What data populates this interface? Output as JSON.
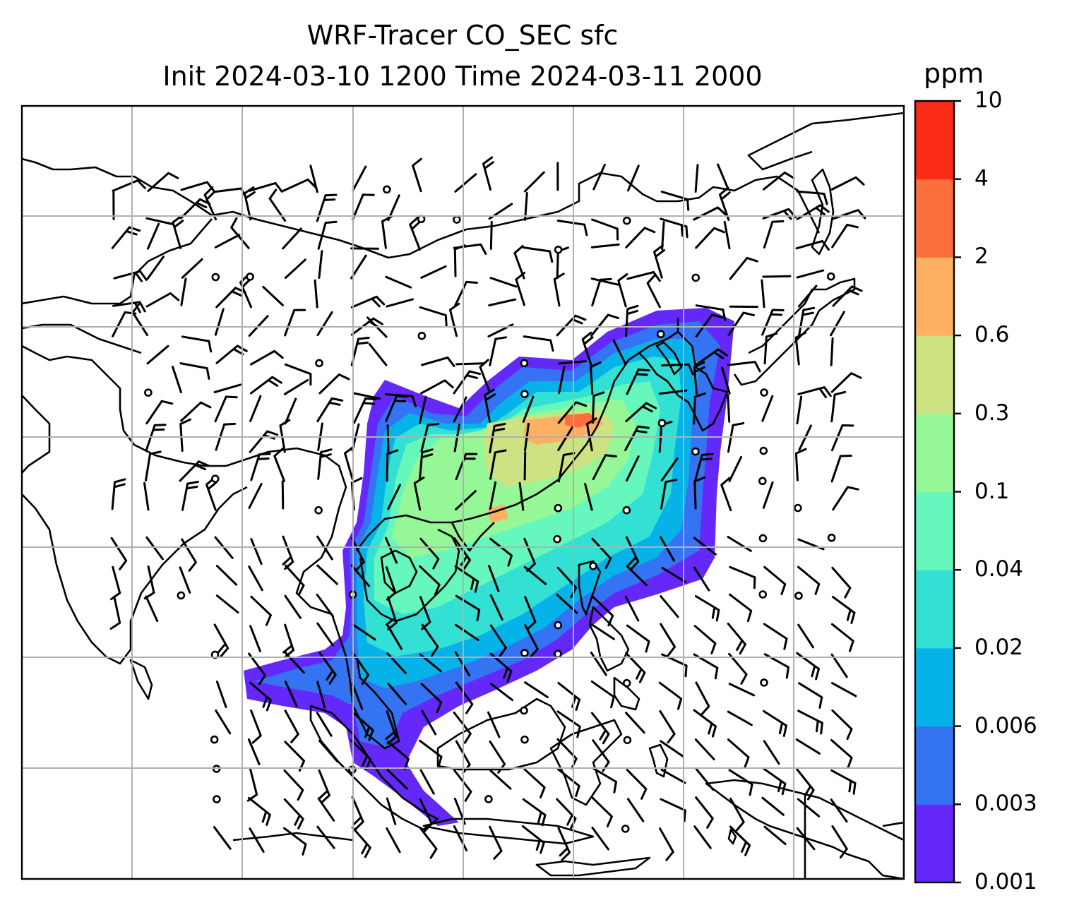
{
  "title": {
    "line1": "WRF-Tracer CO_SEC sfc",
    "line2": "Init 2024-03-10 1200 Time 2024-03-11 2000"
  },
  "colorbar": {
    "unit": "ppm",
    "ticks": [
      "10",
      "4",
      "2",
      "0.6",
      "0.3",
      "0.1",
      "0.04",
      "0.02",
      "0.006",
      "0.003",
      "0.001"
    ],
    "colors": [
      "#6428fa",
      "#3473f2",
      "#06b3e8",
      "#33e0d4",
      "#66f7bc",
      "#96f797",
      "#cde282",
      "#fdb062",
      "#fd703d",
      "#f92b16"
    ]
  },
  "map": {
    "gridlines": true,
    "field": "CO_SEC tracer concentration",
    "overlay": "wind barbs"
  }
}
